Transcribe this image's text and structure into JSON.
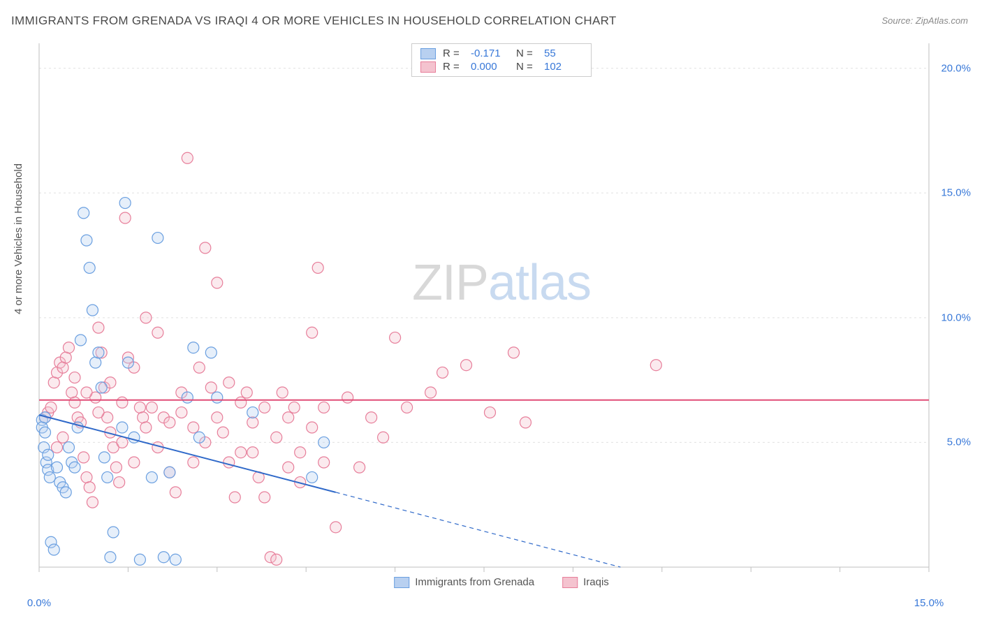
{
  "title": "IMMIGRANTS FROM GRENADA VS IRAQI 4 OR MORE VEHICLES IN HOUSEHOLD CORRELATION CHART",
  "source": "Source: ZipAtlas.com",
  "ylabel": "4 or more Vehicles in Household",
  "watermark": {
    "part1": "ZIP",
    "part2": "atlas"
  },
  "chart": {
    "type": "scatter",
    "background_color": "#ffffff",
    "grid_color": "#e0e0e0",
    "axis_color": "#bfbfbf",
    "xlim": [
      0,
      15
    ],
    "ylim": [
      0,
      21
    ],
    "marker_radius": 8,
    "marker_fill_opacity": 0.35,
    "marker_stroke_width": 1.2,
    "yticks": [
      {
        "v": 5,
        "label": "5.0%"
      },
      {
        "v": 10,
        "label": "10.0%"
      },
      {
        "v": 15,
        "label": "15.0%"
      },
      {
        "v": 20,
        "label": "20.0%"
      }
    ],
    "xticks_minor": [
      0,
      1.5,
      3,
      4.5,
      6,
      7.5,
      9,
      10.5,
      12,
      13.5,
      15
    ],
    "xticks_labeled": [
      {
        "v": 0,
        "label": "0.0%"
      },
      {
        "v": 15,
        "label": "15.0%"
      }
    ],
    "series": [
      {
        "name": "Immigrants from Grenada",
        "color_fill": "#b8d0f0",
        "color_stroke": "#6a9fe0",
        "R": "-0.171",
        "N": "55",
        "trend": {
          "x1": 0,
          "y1": 6.1,
          "x2": 5.0,
          "y2": 3.0,
          "dash_x2": 9.8,
          "dash_y2": 0,
          "color": "#2f69c9",
          "width": 2
        },
        "points": [
          [
            0.05,
            5.9
          ],
          [
            0.05,
            5.6
          ],
          [
            0.08,
            4.8
          ],
          [
            0.1,
            5.4
          ],
          [
            0.1,
            6.0
          ],
          [
            0.12,
            4.2
          ],
          [
            0.15,
            3.9
          ],
          [
            0.15,
            4.5
          ],
          [
            0.18,
            3.6
          ],
          [
            0.2,
            1.0
          ],
          [
            0.25,
            0.7
          ],
          [
            0.3,
            4.0
          ],
          [
            0.35,
            3.4
          ],
          [
            0.4,
            3.2
          ],
          [
            0.45,
            3.0
          ],
          [
            0.5,
            4.8
          ],
          [
            0.55,
            4.2
          ],
          [
            0.6,
            4.0
          ],
          [
            0.65,
            5.6
          ],
          [
            0.7,
            9.1
          ],
          [
            0.75,
            14.2
          ],
          [
            0.8,
            13.1
          ],
          [
            0.85,
            12.0
          ],
          [
            0.9,
            10.3
          ],
          [
            0.95,
            8.2
          ],
          [
            1.0,
            8.6
          ],
          [
            1.05,
            7.2
          ],
          [
            1.1,
            4.4
          ],
          [
            1.15,
            3.6
          ],
          [
            1.2,
            0.4
          ],
          [
            1.25,
            1.4
          ],
          [
            1.4,
            5.6
          ],
          [
            1.45,
            14.6
          ],
          [
            1.5,
            8.2
          ],
          [
            1.6,
            5.2
          ],
          [
            1.7,
            0.3
          ],
          [
            1.9,
            3.6
          ],
          [
            2.0,
            13.2
          ],
          [
            2.1,
            0.4
          ],
          [
            2.2,
            3.8
          ],
          [
            2.3,
            0.3
          ],
          [
            2.5,
            6.8
          ],
          [
            2.6,
            8.8
          ],
          [
            2.7,
            5.2
          ],
          [
            2.9,
            8.6
          ],
          [
            3.0,
            6.8
          ],
          [
            3.6,
            6.2
          ],
          [
            4.6,
            3.6
          ],
          [
            4.8,
            5.0
          ]
        ]
      },
      {
        "name": "Iraqis",
        "color_fill": "#f4c3cf",
        "color_stroke": "#e77e9a",
        "R": "0.000",
        "N": "102",
        "trend": {
          "x1": 0,
          "y1": 6.7,
          "x2": 15,
          "y2": 6.7,
          "color": "#e04d76",
          "width": 2
        },
        "points": [
          [
            0.1,
            6.0
          ],
          [
            0.15,
            6.2
          ],
          [
            0.2,
            6.4
          ],
          [
            0.25,
            7.4
          ],
          [
            0.3,
            7.8
          ],
          [
            0.35,
            8.2
          ],
          [
            0.4,
            8.0
          ],
          [
            0.45,
            8.4
          ],
          [
            0.5,
            8.8
          ],
          [
            0.55,
            7.0
          ],
          [
            0.6,
            6.6
          ],
          [
            0.65,
            6.0
          ],
          [
            0.7,
            5.8
          ],
          [
            0.75,
            4.4
          ],
          [
            0.8,
            3.6
          ],
          [
            0.85,
            3.2
          ],
          [
            0.9,
            2.6
          ],
          [
            0.95,
            6.8
          ],
          [
            1.0,
            9.6
          ],
          [
            1.05,
            8.6
          ],
          [
            1.1,
            7.2
          ],
          [
            1.15,
            6.0
          ],
          [
            1.2,
            5.4
          ],
          [
            1.25,
            4.8
          ],
          [
            1.3,
            4.0
          ],
          [
            1.35,
            3.4
          ],
          [
            1.4,
            6.6
          ],
          [
            1.45,
            14.0
          ],
          [
            1.5,
            8.4
          ],
          [
            1.6,
            8.0
          ],
          [
            1.7,
            6.4
          ],
          [
            1.75,
            6.0
          ],
          [
            1.8,
            10.0
          ],
          [
            1.9,
            6.4
          ],
          [
            2.0,
            9.4
          ],
          [
            2.1,
            6.0
          ],
          [
            2.2,
            3.8
          ],
          [
            2.3,
            3.0
          ],
          [
            2.4,
            6.2
          ],
          [
            2.5,
            16.4
          ],
          [
            2.6,
            5.6
          ],
          [
            2.7,
            8.0
          ],
          [
            2.8,
            12.8
          ],
          [
            2.9,
            7.2
          ],
          [
            3.0,
            11.4
          ],
          [
            3.1,
            5.4
          ],
          [
            3.2,
            4.2
          ],
          [
            3.3,
            2.8
          ],
          [
            3.4,
            6.6
          ],
          [
            3.5,
            7.0
          ],
          [
            3.6,
            4.6
          ],
          [
            3.7,
            3.6
          ],
          [
            3.8,
            2.8
          ],
          [
            3.9,
            0.4
          ],
          [
            4.0,
            0.3
          ],
          [
            4.1,
            7.0
          ],
          [
            4.2,
            4.0
          ],
          [
            4.3,
            6.4
          ],
          [
            4.4,
            3.4
          ],
          [
            4.6,
            9.4
          ],
          [
            4.7,
            12.0
          ],
          [
            4.8,
            4.2
          ],
          [
            5.0,
            1.6
          ],
          [
            5.2,
            6.8
          ],
          [
            5.4,
            4.0
          ],
          [
            5.6,
            6.0
          ],
          [
            5.8,
            5.2
          ],
          [
            6.0,
            9.2
          ],
          [
            6.2,
            6.4
          ],
          [
            6.6,
            7.0
          ],
          [
            6.8,
            7.8
          ],
          [
            7.2,
            8.1
          ],
          [
            7.6,
            6.2
          ],
          [
            8.0,
            8.6
          ],
          [
            8.2,
            5.8
          ],
          [
            10.4,
            8.1
          ],
          [
            0.3,
            4.8
          ],
          [
            0.4,
            5.2
          ],
          [
            0.6,
            7.6
          ],
          [
            0.8,
            7.0
          ],
          [
            1.0,
            6.2
          ],
          [
            1.2,
            7.4
          ],
          [
            1.4,
            5.0
          ],
          [
            1.6,
            4.2
          ],
          [
            1.8,
            5.6
          ],
          [
            2.0,
            4.8
          ],
          [
            2.2,
            5.8
          ],
          [
            2.4,
            7.0
          ],
          [
            2.6,
            4.2
          ],
          [
            2.8,
            5.0
          ],
          [
            3.0,
            6.0
          ],
          [
            3.2,
            7.4
          ],
          [
            3.4,
            4.6
          ],
          [
            3.6,
            5.8
          ],
          [
            3.8,
            6.4
          ],
          [
            4.0,
            5.2
          ],
          [
            4.2,
            6.0
          ],
          [
            4.4,
            4.6
          ],
          [
            4.6,
            5.6
          ],
          [
            4.8,
            6.4
          ]
        ]
      }
    ]
  }
}
